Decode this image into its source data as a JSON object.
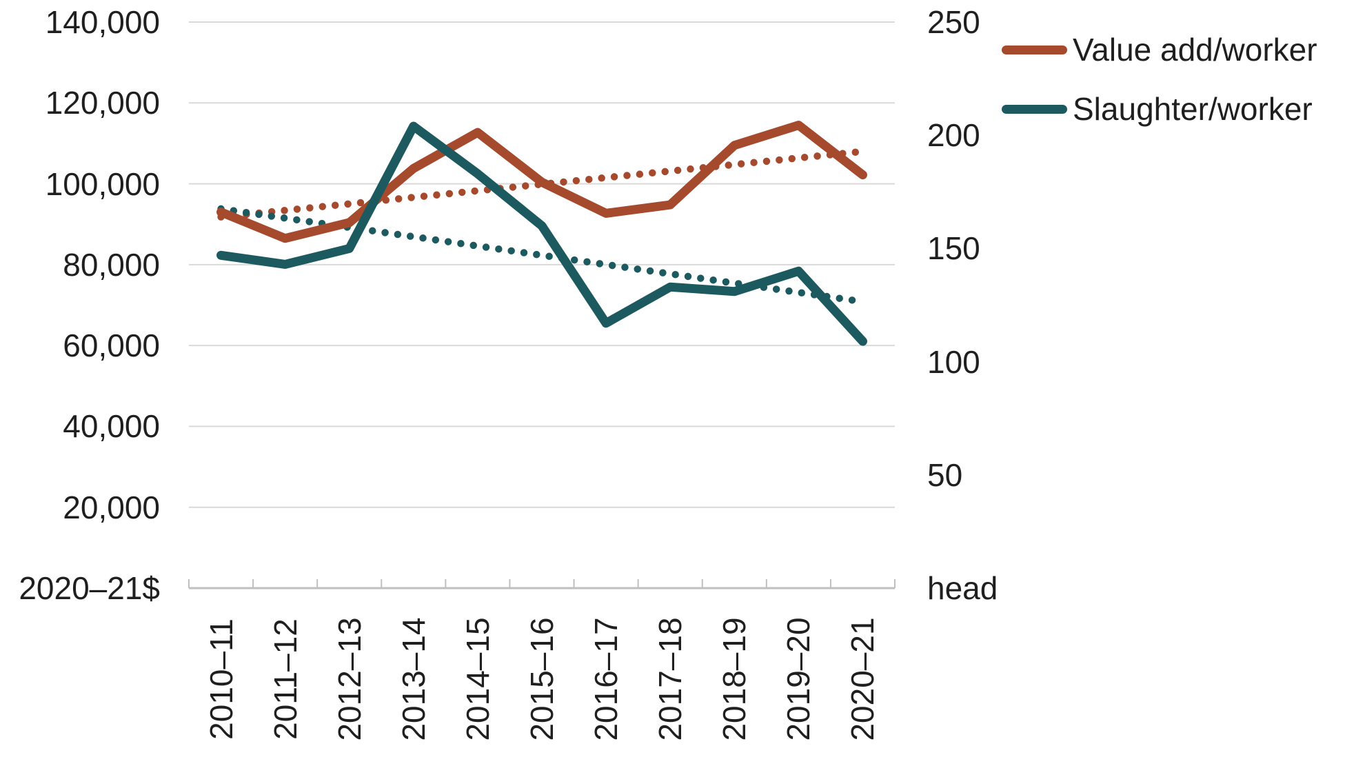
{
  "chart_data": {
    "type": "line",
    "categories": [
      "2010–11",
      "2011–12",
      "2012–13",
      "2013–14",
      "2014–15",
      "2015–16",
      "2016–17",
      "2017–18",
      "2018–19",
      "2019–20",
      "2020–21"
    ],
    "series": [
      {
        "name": "Value add/worker",
        "axis": "left",
        "style": "solid",
        "color": "#A64A2E",
        "values": [
          93000,
          86500,
          90400,
          103800,
          112700,
          100400,
          92700,
          94800,
          109500,
          114500,
          102200
        ]
      },
      {
        "name": "Slaughter/worker",
        "axis": "right",
        "style": "solid",
        "color": "#1C5A60",
        "values": [
          147,
          143,
          150,
          204,
          183,
          160,
          117,
          133,
          131,
          140,
          109
        ]
      },
      {
        "name": "Value add/worker trend",
        "axis": "left",
        "style": "dotted",
        "color": "#A64A2E",
        "trend_start": 91800,
        "trend_end": 108000
      },
      {
        "name": "Slaughter/worker trend",
        "axis": "right",
        "style": "dotted",
        "color": "#1C5A60",
        "trend_start": 167.5,
        "trend_end": 126.5
      }
    ],
    "left_axis": {
      "title": "2020–21$",
      "min": 0,
      "max": 140000,
      "tick_step": 20000,
      "tick_labels": [
        "140,000",
        "120,000",
        "100,000",
        "80,000",
        "60,000",
        "40,000",
        "20,000"
      ]
    },
    "right_axis": {
      "title": "head",
      "min": 0,
      "max": 250,
      "tick_step": 50,
      "tick_labels": [
        "250",
        "200",
        "150",
        "100",
        "50"
      ]
    },
    "legend": [
      {
        "label": "Value add/worker",
        "color": "#A64A2E"
      },
      {
        "label": "Slaughter/worker",
        "color": "#1C5A60"
      }
    ],
    "grid": "horizontal",
    "gridline_color": "#D9D9D9",
    "axis_line_color": "#BFBFBF",
    "text_color": "#1F1F1F"
  }
}
